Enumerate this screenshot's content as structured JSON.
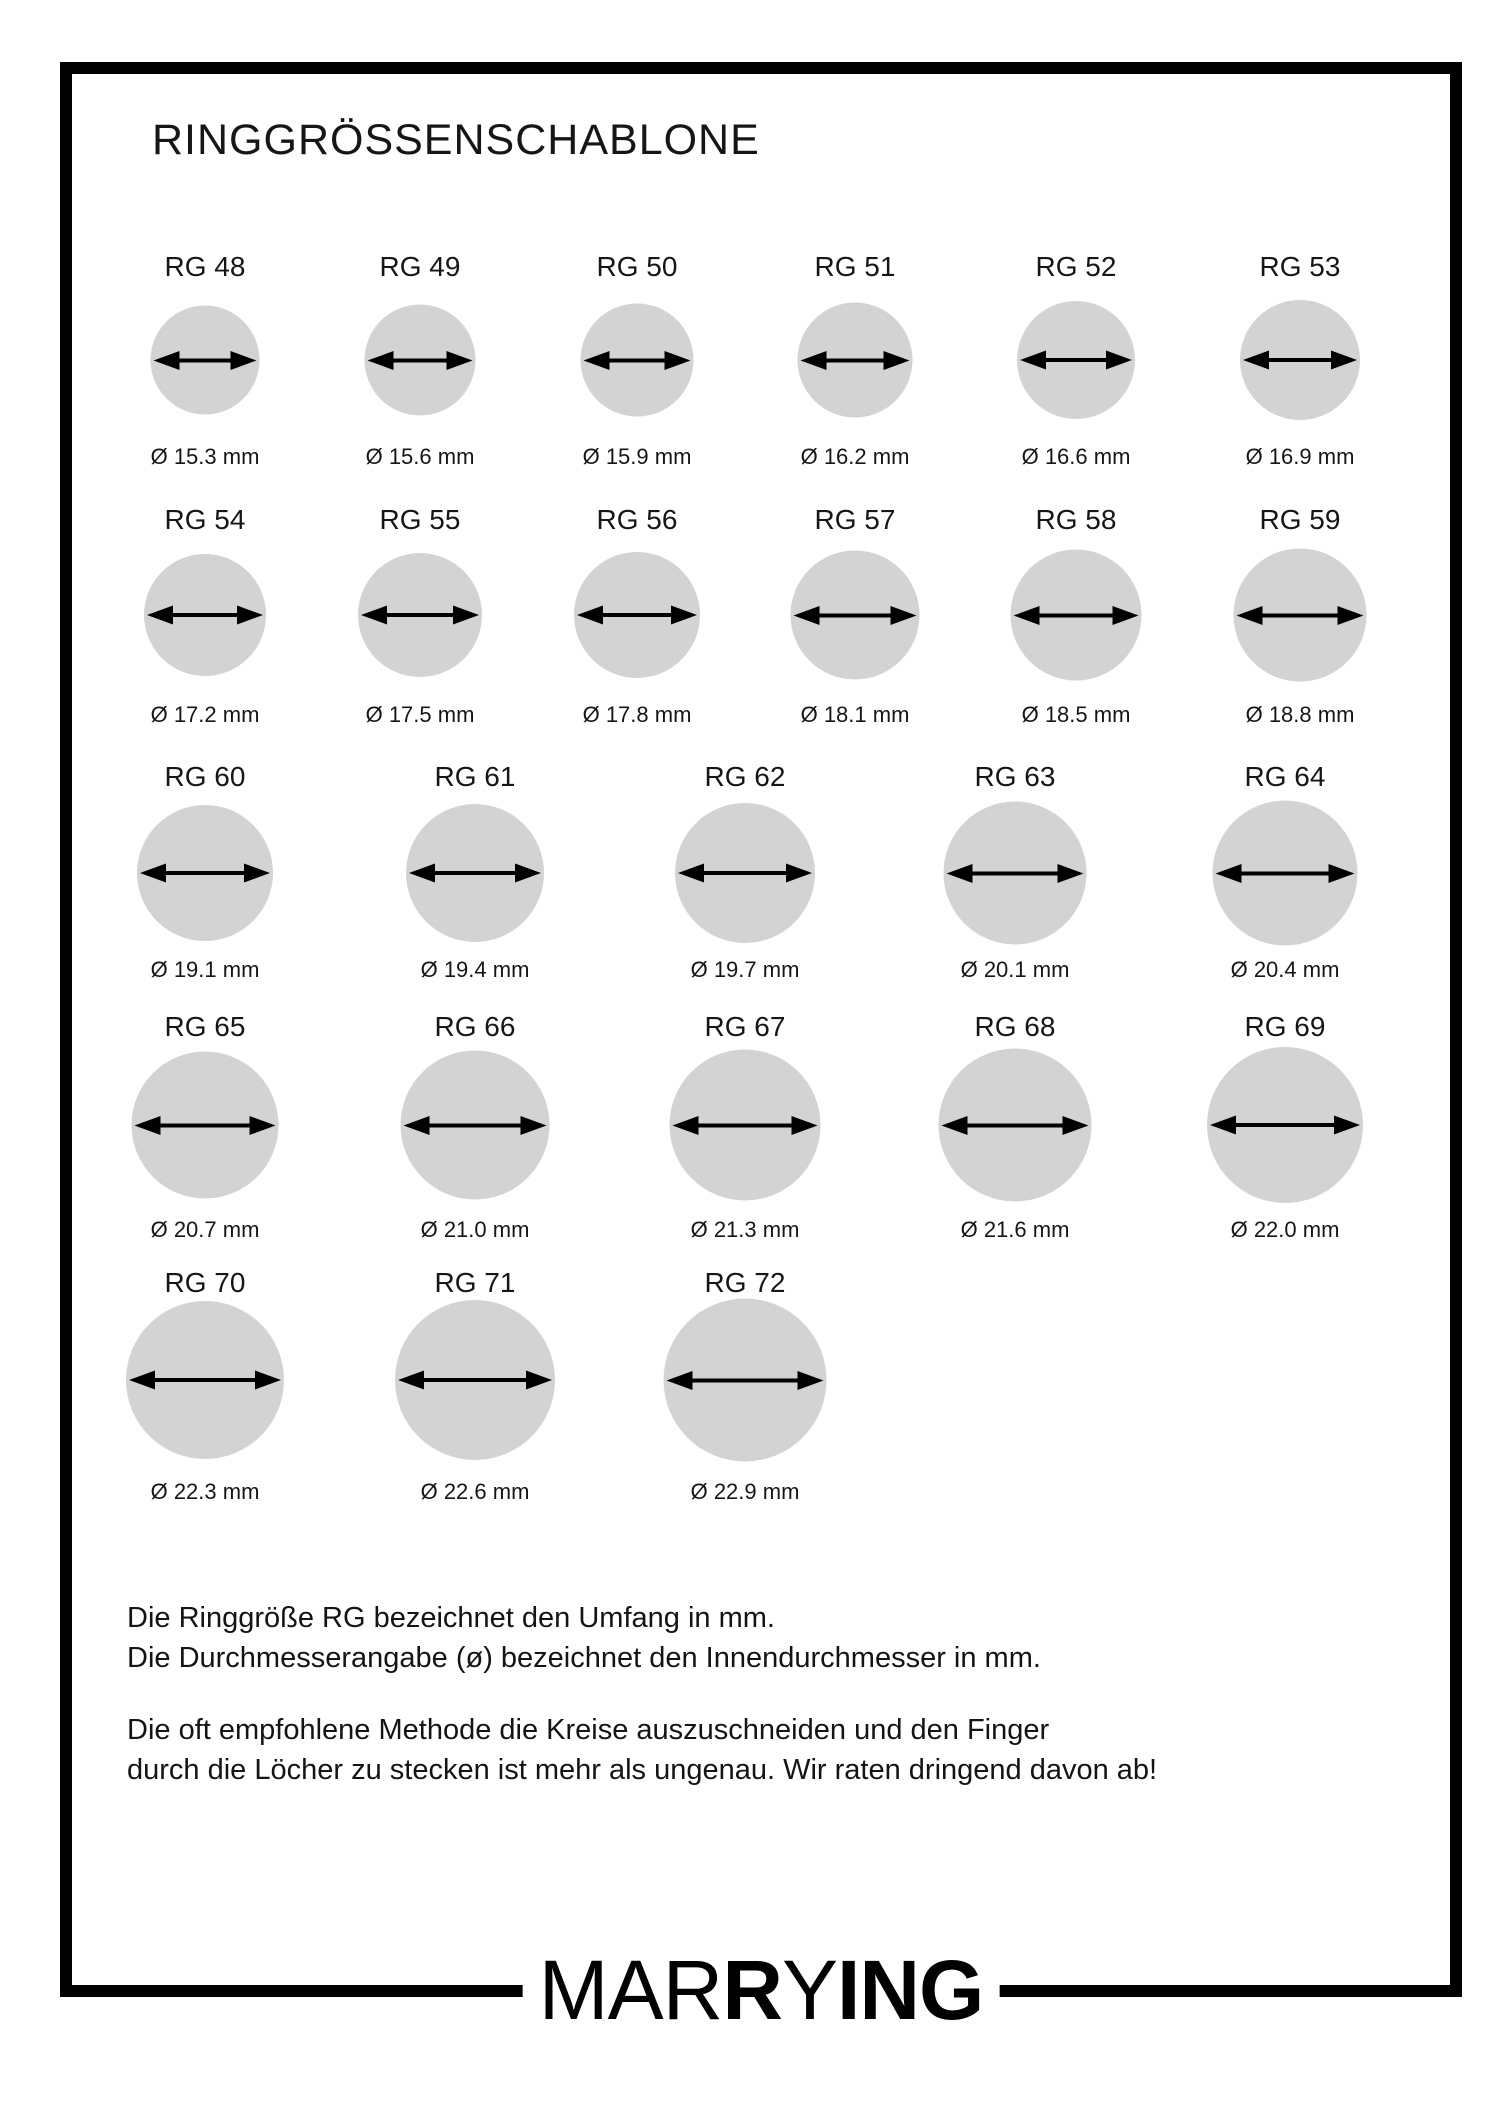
{
  "page": {
    "title": "RINGGRÖSSENSCHABLONE"
  },
  "notes": [
    "Die Ringgröße RG bezeichnet den Umfang in mm.",
    "Die Durchmesserangabe (ø) bezeichnet den Innendurchmesser in mm.",
    "Die oft empfohlene Methode die Kreise auszuschneiden und den Finger",
    "durch die Löcher zu stecken ist mehr als ungenau. Wir raten dringend davon ab!"
  ],
  "rings": {
    "rows": [
      {
        "items": [
          {
            "size_label": "RG 48",
            "diameter_label": "Ø 15.3 mm",
            "diameter_mm": 15.3
          },
          {
            "size_label": "RG 49",
            "diameter_label": "Ø 15.6 mm",
            "diameter_mm": 15.6
          },
          {
            "size_label": "RG 50",
            "diameter_label": "Ø 15.9 mm",
            "diameter_mm": 15.9
          },
          {
            "size_label": "RG 51",
            "diameter_label": "Ø 16.2 mm",
            "diameter_mm": 16.2
          },
          {
            "size_label": "RG 52",
            "diameter_label": "Ø 16.6 mm",
            "diameter_mm": 16.6
          },
          {
            "size_label": "RG 53",
            "diameter_label": "Ø 16.9 mm",
            "diameter_mm": 16.9
          }
        ]
      },
      {
        "items": [
          {
            "size_label": "RG 54",
            "diameter_label": "Ø 17.2 mm",
            "diameter_mm": 17.2
          },
          {
            "size_label": "RG 55",
            "diameter_label": "Ø 17.5 mm",
            "diameter_mm": 17.5
          },
          {
            "size_label": "RG 56",
            "diameter_label": "Ø 17.8 mm",
            "diameter_mm": 17.8
          },
          {
            "size_label": "RG 57",
            "diameter_label": "Ø 18.1 mm",
            "diameter_mm": 18.1
          },
          {
            "size_label": "RG 58",
            "diameter_label": "Ø 18.5 mm",
            "diameter_mm": 18.5
          },
          {
            "size_label": "RG 59",
            "diameter_label": "Ø 18.8 mm",
            "diameter_mm": 18.8
          }
        ]
      },
      {
        "items": [
          {
            "size_label": "RG 60",
            "diameter_label": "Ø 19.1 mm",
            "diameter_mm": 19.1
          },
          {
            "size_label": "RG 61",
            "diameter_label": "Ø 19.4 mm",
            "diameter_mm": 19.4
          },
          {
            "size_label": "RG 62",
            "diameter_label": "Ø 19.7 mm",
            "diameter_mm": 19.7
          },
          {
            "size_label": "RG 63",
            "diameter_label": "Ø 20.1 mm",
            "diameter_mm": 20.1
          },
          {
            "size_label": "RG 64",
            "diameter_label": "Ø 20.4 mm",
            "diameter_mm": 20.4
          }
        ]
      },
      {
        "items": [
          {
            "size_label": "RG 65",
            "diameter_label": "Ø 20.7 mm",
            "diameter_mm": 20.7
          },
          {
            "size_label": "RG 66",
            "diameter_label": "Ø 21.0 mm",
            "diameter_mm": 21.0
          },
          {
            "size_label": "RG 67",
            "diameter_label": "Ø 21.3 mm",
            "diameter_mm": 21.3
          },
          {
            "size_label": "RG 68",
            "diameter_label": "Ø 21.6 mm",
            "diameter_mm": 21.6
          },
          {
            "size_label": "RG 69",
            "diameter_label": "Ø 22.0 mm",
            "diameter_mm": 22.0
          }
        ]
      },
      {
        "items": [
          {
            "size_label": "RG 70",
            "diameter_label": "Ø 22.3 mm",
            "diameter_mm": 22.3
          },
          {
            "size_label": "RG 71",
            "diameter_label": "Ø 22.6 mm",
            "diameter_mm": 22.6
          },
          {
            "size_label": "RG 72",
            "diameter_label": "Ø 22.9 mm",
            "diameter_mm": 22.9
          }
        ]
      }
    ]
  },
  "logo": {
    "brand_segments": [
      {
        "text": "MAR",
        "weight": "light"
      },
      {
        "text": "R",
        "weight": "bold"
      },
      {
        "text": "Y",
        "weight": "light"
      },
      {
        "text": "ING",
        "weight": "bold"
      }
    ]
  },
  "colors": {
    "circle_fill": "#d3d3d3",
    "arrow": "#000000",
    "ink": "#141414",
    "frame": "#000000"
  }
}
